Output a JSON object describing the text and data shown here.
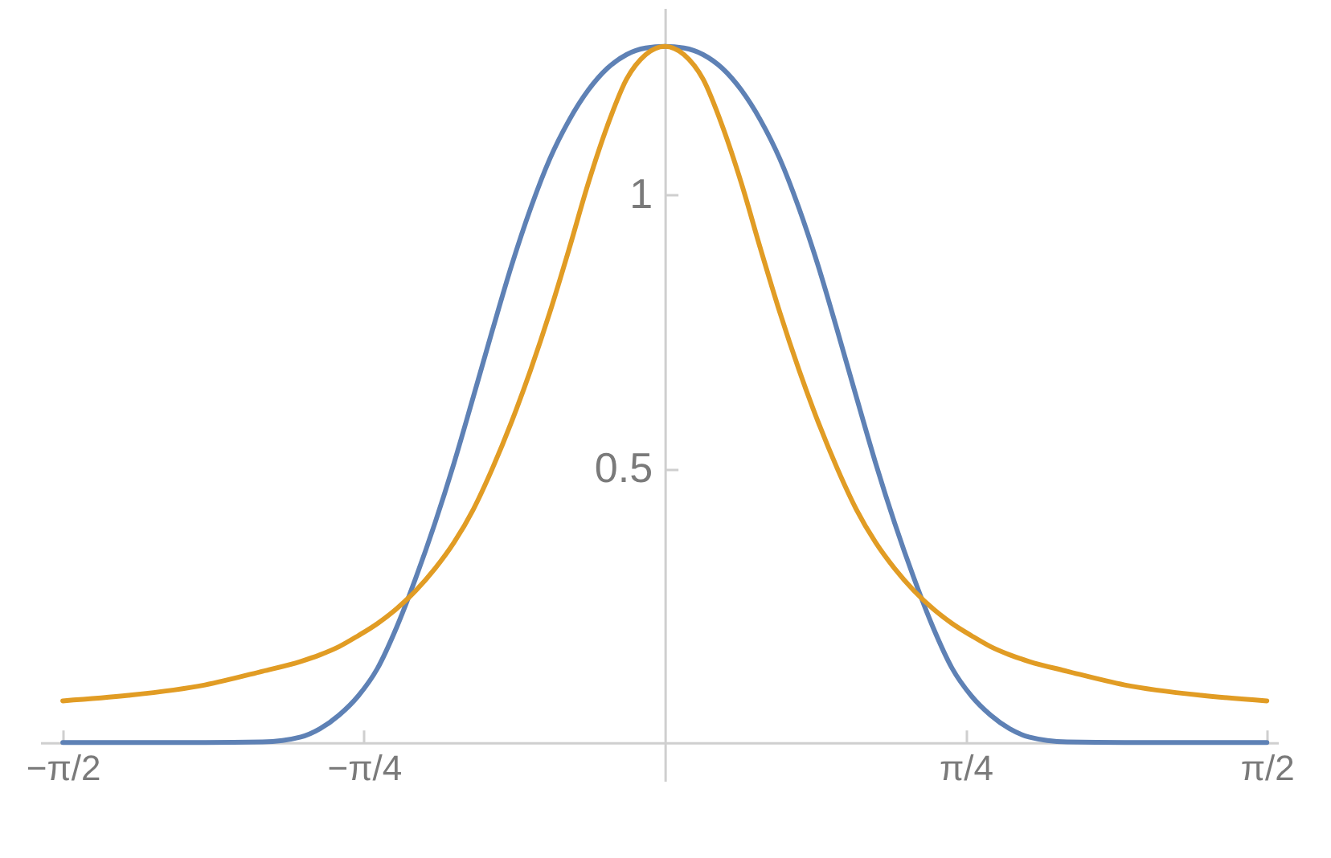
{
  "chart_data": {
    "type": "line",
    "x": [
      -1.571,
      -1.4,
      -1.2,
      -1.05,
      -0.95,
      -0.9,
      -0.85,
      -0.8,
      -0.75,
      -0.7,
      -0.65,
      -0.6,
      -0.55,
      -0.5,
      -0.45,
      -0.4,
      -0.35,
      -0.3,
      -0.25,
      -0.2,
      -0.15,
      -0.1,
      -0.05,
      0,
      0.05,
      0.1,
      0.15,
      0.2,
      0.25,
      0.3,
      0.35,
      0.4,
      0.45,
      0.5,
      0.55,
      0.6,
      0.65,
      0.7,
      0.75,
      0.8,
      0.85,
      0.9,
      0.95,
      1.05,
      1.2,
      1.4,
      1.571
    ],
    "series": [
      {
        "color": "#5e81b5",
        "values": [
          0,
          0,
          0,
          0.001,
          0.01,
          0.025,
          0.05,
          0.085,
          0.135,
          0.21,
          0.3,
          0.4,
          0.51,
          0.63,
          0.752,
          0.87,
          0.975,
          1.065,
          1.135,
          1.19,
          1.23,
          1.255,
          1.267,
          1.27,
          1.267,
          1.255,
          1.23,
          1.19,
          1.135,
          1.065,
          0.975,
          0.87,
          0.752,
          0.63,
          0.51,
          0.4,
          0.3,
          0.21,
          0.135,
          0.085,
          0.05,
          0.025,
          0.01,
          0.001,
          0,
          0,
          0
        ]
      },
      {
        "color": "#e19c24",
        "values": [
          0.076,
          0.086,
          0.105,
          0.13,
          0.148,
          0.16,
          0.175,
          0.195,
          0.217,
          0.244,
          0.277,
          0.317,
          0.365,
          0.425,
          0.5,
          0.585,
          0.68,
          0.785,
          0.9,
          1.02,
          1.125,
          1.21,
          1.255,
          1.27,
          1.255,
          1.21,
          1.125,
          1.02,
          0.9,
          0.785,
          0.68,
          0.585,
          0.5,
          0.425,
          0.365,
          0.317,
          0.277,
          0.244,
          0.217,
          0.195,
          0.175,
          0.16,
          0.148,
          0.13,
          0.105,
          0.086,
          0.076
        ]
      }
    ],
    "xlim": [
      -1.63,
      1.6
    ],
    "ylim": [
      -0.07,
      1.34
    ],
    "xticks": [
      {
        "value": -1.571,
        "label": "−π/2"
      },
      {
        "value": -0.785,
        "label": "−π/4"
      },
      {
        "value": 0.785,
        "label": "π/4"
      },
      {
        "value": 1.571,
        "label": "π/2"
      }
    ],
    "yticks": [
      0.5,
      1
    ],
    "line_style": "solid"
  }
}
